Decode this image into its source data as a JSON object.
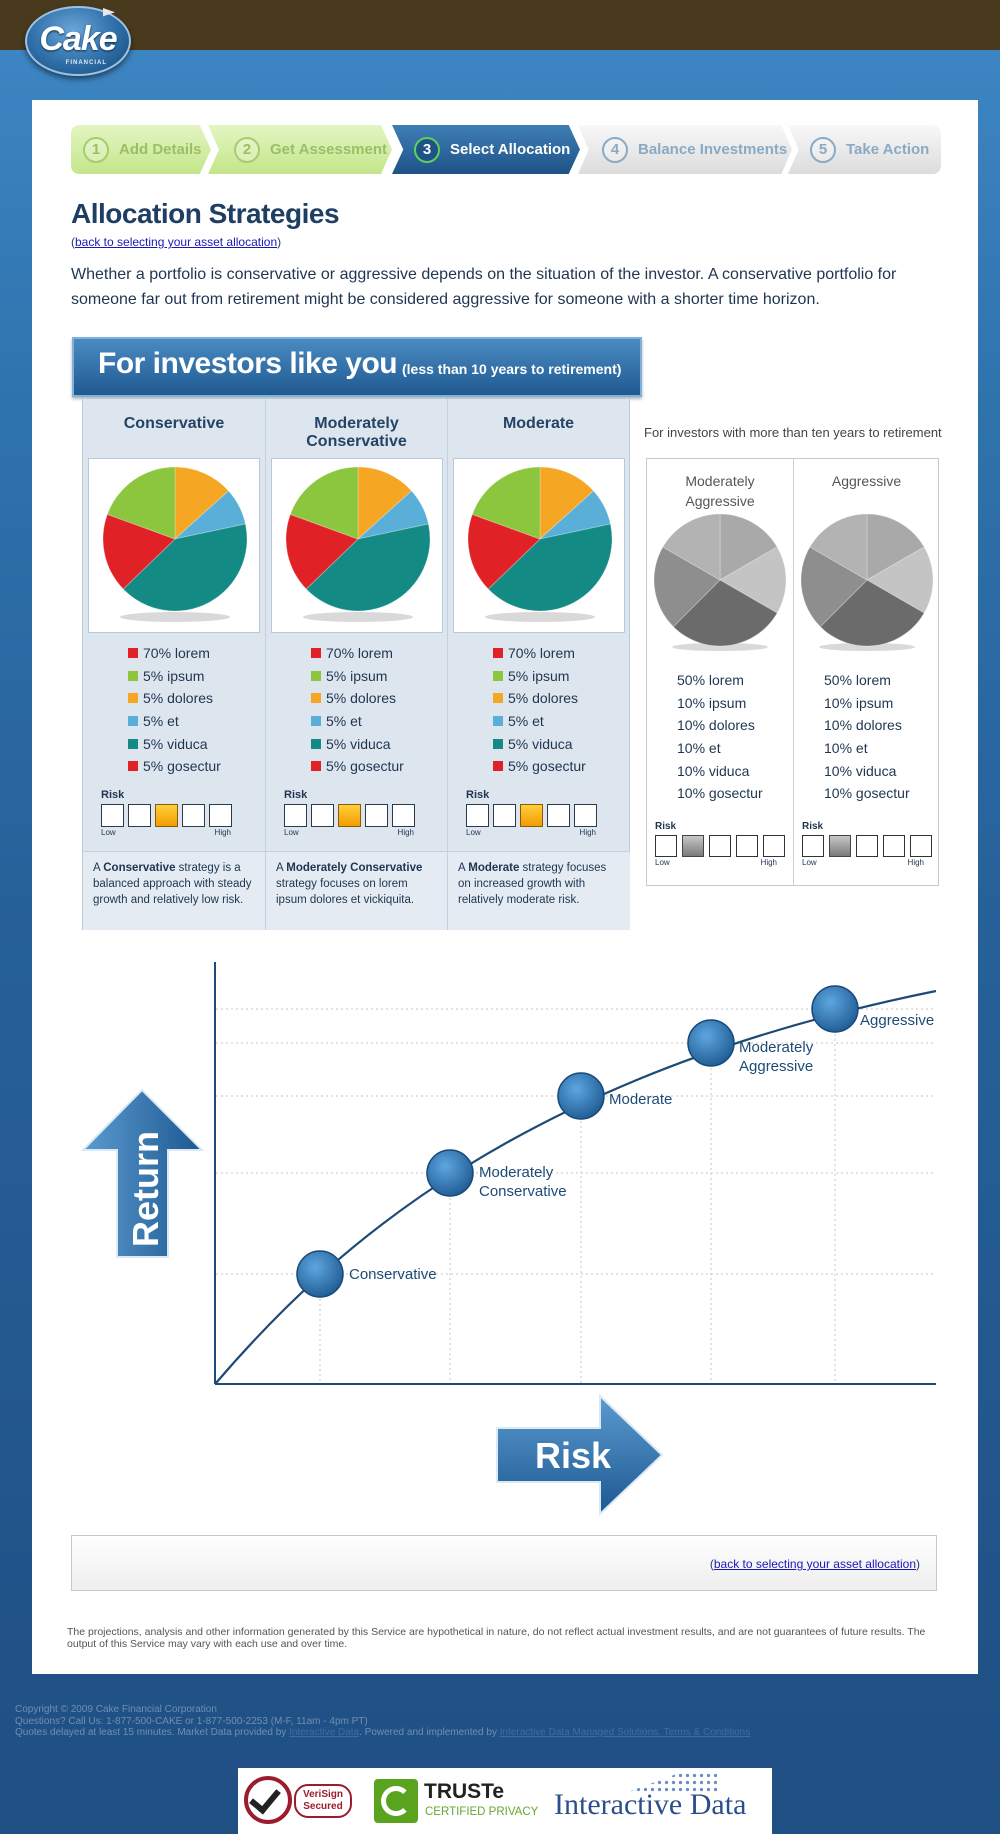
{
  "brand": {
    "logo_text": "Cake",
    "logo_subtext": "FINANCIAL"
  },
  "steps": [
    {
      "num": "1",
      "label": "Add Details",
      "state": "done"
    },
    {
      "num": "2",
      "label": "Get Assessment",
      "state": "done"
    },
    {
      "num": "3",
      "label": "Select Allocation",
      "state": "active"
    },
    {
      "num": "4",
      "label": "Balance Investments",
      "state": "todo"
    },
    {
      "num": "5",
      "label": "Take Action",
      "state": "todo"
    }
  ],
  "page": {
    "title": "Allocation Strategies",
    "back_link": "back to selecting your asset allocation",
    "intro": "Whether a portfolio is conservative or aggressive depends on the situation of the investor. A conservative portfolio for someone far out from retirement might be considered aggressive for someone with a shorter time horizon."
  },
  "banner": {
    "big": "For investors like you",
    "small": "(less than 10 years to retirement)"
  },
  "colors": {
    "red": "#e02226",
    "green": "#8cc63f",
    "orange": "#f5a623",
    "lightblue": "#5aafd8",
    "teal": "#138a83",
    "accent": "#1e5387"
  },
  "strategies": [
    {
      "name": "Conservative",
      "legend": [
        "70% lorem",
        "5% ipsum",
        "5% dolores",
        "5% et",
        "5% viduca",
        "5% gosectur"
      ],
      "risk_label": "Risk",
      "risk_low": "Low",
      "risk_high": "High",
      "risk_level": 3,
      "desc_pre": "A ",
      "desc_bold": "Conservative",
      "desc_post": " strategy is a balanced approach with steady growth and relatively low risk."
    },
    {
      "name": "Moderately Conservative",
      "legend": [
        "70% lorem",
        "5% ipsum",
        "5% dolores",
        "5% et",
        "5% viduca",
        "5% gosectur"
      ],
      "risk_label": "Risk",
      "risk_low": "Low",
      "risk_high": "High",
      "risk_level": 3,
      "desc_pre": "A ",
      "desc_bold": "Moderately Conservative",
      "desc_post": " strategy focuses on lorem ipsum dolores et vickiquita."
    },
    {
      "name": "Moderate",
      "legend": [
        "70% lorem",
        "5% ipsum",
        "5% dolores",
        "5% et",
        "5% viduca",
        "5% gosectur"
      ],
      "risk_label": "Risk",
      "risk_low": "Low",
      "risk_high": "High",
      "risk_level": 3,
      "desc_pre": "A ",
      "desc_bold": "Moderate",
      "desc_post": " strategy focuses on increased growth with relatively moderate risk."
    }
  ],
  "other": {
    "caption": "For investors with more than ten years to retirement",
    "strategies": [
      {
        "name": "Moderately Aggressive",
        "legend": [
          "50% lorem",
          "10% ipsum",
          "10% dolores",
          "10% et",
          "10% viduca",
          "10% gosectur"
        ],
        "risk_label": "Risk",
        "risk_low": "Low",
        "risk_high": "High",
        "risk_level": 2
      },
      {
        "name": "Aggressive",
        "legend": [
          "50% lorem",
          "10% ipsum",
          "10% dolores",
          "10% et",
          "10% viduca",
          "10% gosectur"
        ],
        "risk_label": "Risk",
        "risk_low": "Low",
        "risk_high": "High",
        "risk_level": 2
      }
    ]
  },
  "chart": {
    "y_arrow_label": "Return",
    "x_arrow_label": "Risk",
    "points": [
      "Conservative",
      "Moderately Conservative",
      "Moderate",
      "Moderately Aggressive",
      "Aggressive"
    ]
  },
  "footer": {
    "back_link": "back to selecting your asset allocation",
    "disclaimer": "The projections, analysis and other information generated by this Service are hypothetical in nature, do not reflect actual investment results, and are not guarantees of future results. The output of this Service may vary with each use and over time.",
    "copyright": "Copyright © 2009 Cake Financial Corporation",
    "questions": "Questions? Call Us: 1-877-500-CAKE or 1-877-500-2253 (M-F, 11am - 4pm PT)",
    "quotes_pre": "Quotes delayed at least 15 minutes. Market Data provided by",
    "quotes_link1": "Interactive Data",
    "quotes_mid": ". Powered and implemented by",
    "quotes_link2": "Interactive Data Managed Solutions. Terms & Conditions"
  },
  "badges": {
    "verisign_line1": "VeriSign",
    "verisign_line2": "Secured",
    "truste_title": "TRUSTe",
    "truste_sub": "CERTIFIED PRIVACY",
    "idata": "Interactive Data"
  }
}
